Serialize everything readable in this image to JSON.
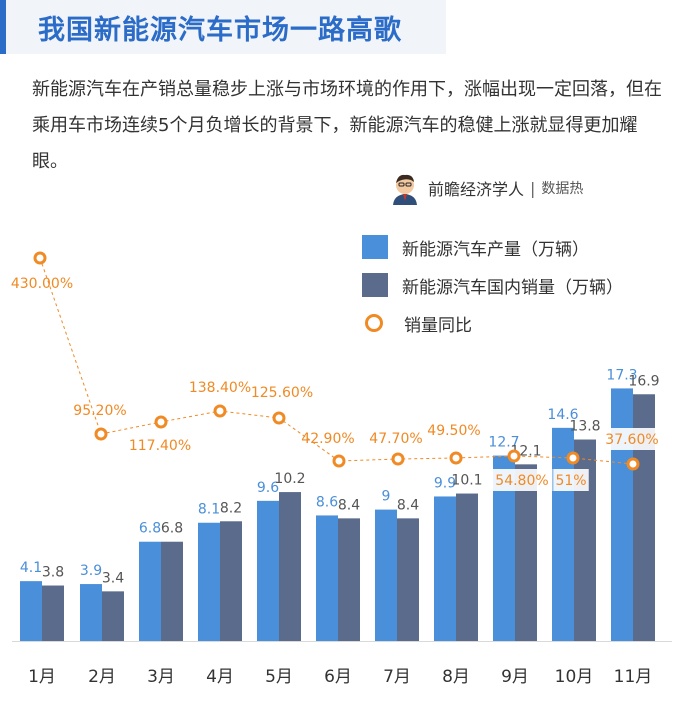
{
  "header": {
    "title": "我国新能源汽车市场一路高歌",
    "description": "新能源汽车在产销总量稳步上涨与市场环境的作用下，涨幅出现一定回落，但在乘用车市场连续5个月负增长的背景下，新能源汽车的稳健上涨就显得更加耀眼。"
  },
  "author": {
    "name": "前瞻经济学人",
    "sub": "数据热"
  },
  "colors": {
    "production": "#4a8fd9",
    "sales": "#5b6b8c",
    "yoy": "#f08a25",
    "title": "#2b6cc8"
  },
  "chart_data": {
    "type": "bar",
    "categories": [
      "1月",
      "2月",
      "3月",
      "4月",
      "5月",
      "6月",
      "7月",
      "8月",
      "9月",
      "10月",
      "11月"
    ],
    "series": [
      {
        "name": "新能源汽车产量（万辆）",
        "values": [
          4.1,
          3.9,
          6.8,
          8.1,
          9.6,
          8.6,
          9,
          9.9,
          12.7,
          14.6,
          17.3
        ]
      },
      {
        "name": "新能源汽车国内销量（万辆）",
        "values": [
          3.8,
          3.4,
          6.8,
          8.2,
          10.2,
          8.4,
          8.4,
          10.1,
          12.1,
          13.8,
          16.9
        ]
      }
    ],
    "line": {
      "name": "销量同比",
      "values": [
        430.0,
        95.2,
        117.4,
        138.4,
        125.6,
        42.9,
        47.7,
        49.5,
        54.8,
        51.0,
        37.6
      ],
      "labels": [
        "430.00%",
        "95.20%",
        "117.40%",
        "138.40%",
        "125.60%",
        "42.90%",
        "47.70%",
        "49.50%",
        "54.80%",
        "51%",
        "37.60%"
      ]
    },
    "bar_labels": {
      "production": [
        "4.1",
        "3.9",
        "6.8",
        "8.1",
        "9.6",
        "8.6",
        "9",
        "9.9",
        "12.7",
        "14.6",
        "17.3"
      ],
      "sales": [
        "3.8",
        "3.4",
        "6.8",
        "8.2",
        "10.2",
        "8.4",
        "8.4",
        "10.1",
        "12.1",
        "13.8",
        "16.9"
      ]
    },
    "legend_position": "top-right",
    "grid": false
  }
}
